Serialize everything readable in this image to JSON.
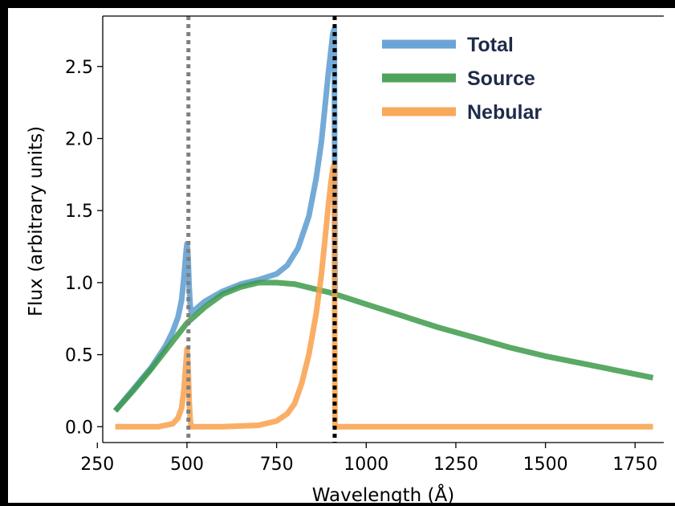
{
  "chart_data": {
    "type": "line",
    "title": "",
    "xlabel": "Wavelength (Å)",
    "ylabel": "Flux (arbitrary units)",
    "xlim": [
      265,
      1830
    ],
    "ylim": [
      -0.11,
      2.85
    ],
    "grid": false,
    "legend_position": "top-right",
    "xticks": [
      250,
      500,
      750,
      1000,
      1250,
      1500,
      1750
    ],
    "xtick_labels": [
      "250",
      "500",
      "750",
      "1000",
      "1250",
      "1500",
      "1750"
    ],
    "yticks": [
      0.0,
      0.5,
      1.0,
      1.5,
      2.0,
      2.5
    ],
    "ytick_labels": [
      "0.0",
      "0.5",
      "1.0",
      "1.5",
      "2.0",
      "2.5"
    ],
    "vlines": [
      {
        "x": 504,
        "color": "#808080",
        "style": "dotted"
      },
      {
        "x": 912,
        "color": "#000000",
        "style": "dotted"
      }
    ],
    "series": [
      {
        "name": "Total",
        "color": "#5b9bd0",
        "x": [
          300,
          350,
          400,
          440,
          460,
          475,
          485,
          492,
          497,
          500,
          503,
          506,
          509,
          512,
          550,
          600,
          650,
          700,
          750,
          780,
          810,
          840,
          860,
          875,
          885,
          895,
          902,
          907,
          911,
          913
        ],
        "y": [
          0.11,
          0.26,
          0.41,
          0.56,
          0.66,
          0.76,
          0.88,
          1.05,
          1.2,
          1.27,
          1.18,
          0.98,
          0.84,
          0.79,
          0.87,
          0.94,
          0.99,
          1.02,
          1.06,
          1.12,
          1.24,
          1.46,
          1.72,
          1.98,
          2.22,
          2.47,
          2.62,
          2.73,
          2.76,
          0.93
        ]
      },
      {
        "name": "Source",
        "color": "#3d9a4a",
        "x": [
          300,
          350,
          400,
          450,
          500,
          550,
          600,
          650,
          700,
          750,
          800,
          850,
          900,
          950,
          1000,
          1100,
          1200,
          1300,
          1400,
          1500,
          1600,
          1700,
          1800
        ],
        "y": [
          0.11,
          0.25,
          0.4,
          0.56,
          0.72,
          0.83,
          0.92,
          0.97,
          1.0,
          1.0,
          0.99,
          0.96,
          0.93,
          0.89,
          0.85,
          0.77,
          0.69,
          0.62,
          0.55,
          0.49,
          0.44,
          0.39,
          0.34
        ]
      },
      {
        "name": "Nebular",
        "color": "#f9a04a",
        "x": [
          300,
          420,
          460,
          475,
          485,
          492,
          497,
          500,
          503,
          506,
          509,
          512,
          600,
          700,
          750,
          780,
          800,
          820,
          840,
          860,
          875,
          885,
          895,
          902,
          907,
          911,
          913,
          950,
          1000,
          1200,
          1400,
          1600,
          1800
        ],
        "y": [
          0.0,
          0.0,
          0.02,
          0.06,
          0.13,
          0.27,
          0.44,
          0.54,
          0.43,
          0.19,
          0.05,
          0.0,
          0.0,
          0.01,
          0.04,
          0.09,
          0.16,
          0.3,
          0.5,
          0.78,
          1.06,
          1.3,
          1.55,
          1.7,
          1.79,
          1.82,
          0.0,
          0.0,
          0.0,
          0.0,
          0.0,
          0.0,
          0.0
        ]
      }
    ]
  }
}
